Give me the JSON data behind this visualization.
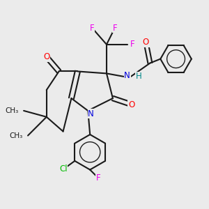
{
  "bg_color": "#ebebeb",
  "bond_color": "#1a1a1a",
  "bond_width": 1.5,
  "atom_colors": {
    "O": "#ff0000",
    "N": "#0000dd",
    "F": "#ee00ee",
    "Cl": "#00bb00",
    "H": "#008888",
    "C": "#1a1a1a"
  },
  "font_size": 8.5
}
